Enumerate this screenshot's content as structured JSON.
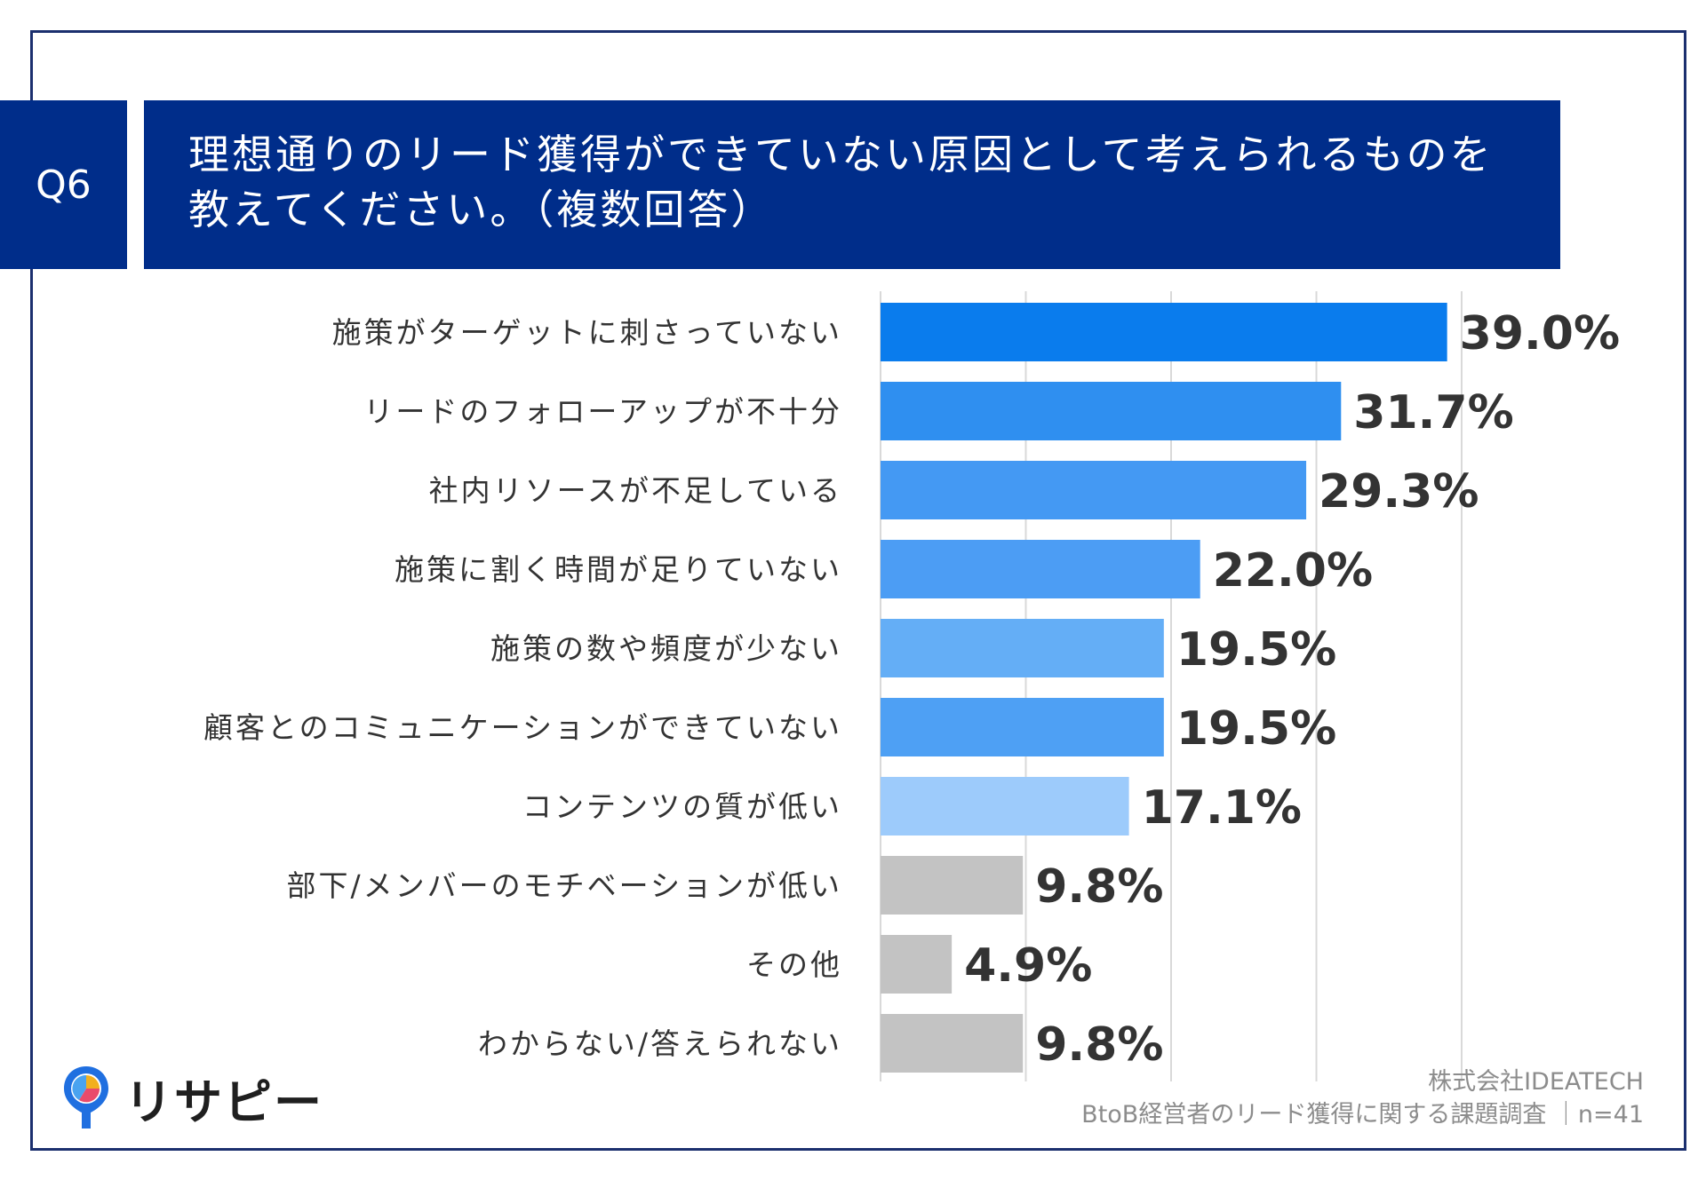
{
  "question": {
    "label": "Q6",
    "title_lines": [
      "理想通りのリード獲得ができていない原因として考えられるものを",
      "教えてください。（複数回答）"
    ]
  },
  "chart_data": {
    "type": "bar",
    "orientation": "horizontal",
    "categories": [
      "施策がターゲットに刺さっていない",
      "リードのフォローアップが不十分",
      "社内リソースが不足している",
      "施策に割く時間が足りていない",
      "施策の数や頻度が少ない",
      "顧客とのコミュニケーションができていない",
      "コンテンツの質が低い",
      "部下/メンバーのモチベーションが低い",
      "その他",
      "わからない/答えられない"
    ],
    "values": [
      39.0,
      31.7,
      29.3,
      22.0,
      19.5,
      19.5,
      17.1,
      9.8,
      4.9,
      9.8
    ],
    "value_labels": [
      "39.0%",
      "31.7%",
      "29.3%",
      "22.0%",
      "19.5%",
      "19.5%",
      "17.1%",
      "9.8%",
      "4.9%",
      "9.8%"
    ],
    "colors": [
      "#0a7ced",
      "#2f8ff0",
      "#4499f3",
      "#4c9df4",
      "#64aef6",
      "#4ea0f4",
      "#9dcbfb",
      "#c3c3c3",
      "#c3c3c3",
      "#c3c3c3"
    ],
    "xlim": [
      0,
      40
    ],
    "grid": true,
    "legend": "none"
  },
  "source": {
    "company": "株式会社IDEATECH",
    "survey": "BtoB経営者のリード獲得に関する課題調査 ｜n=41"
  },
  "logo": {
    "text": "リサピー",
    "icon": "map-pin-pie-icon"
  }
}
